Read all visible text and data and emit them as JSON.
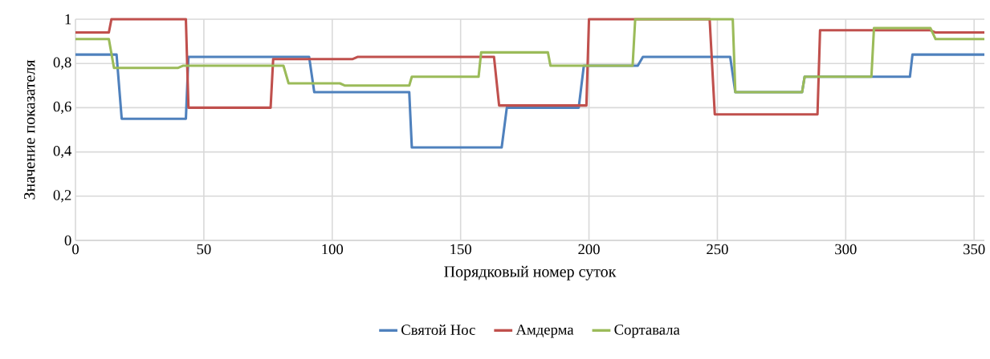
{
  "chart_data": {
    "type": "line",
    "xlabel": "Порядковый номер суток",
    "ylabel": "Значение показателя",
    "xlim": [
      0,
      354
    ],
    "ylim": [
      0,
      1
    ],
    "xticks": [
      0,
      50,
      100,
      150,
      200,
      250,
      300,
      350
    ],
    "yticks": [
      0,
      {
        "value": 0.2,
        "label": "0,2"
      },
      {
        "value": 0.4,
        "label": "0,4"
      },
      {
        "value": 0.6,
        "label": "0,6"
      },
      {
        "value": 0.8,
        "label": "0,8"
      },
      1
    ],
    "grid": true,
    "legend": "bottom",
    "marker": "none",
    "line_style": "solid",
    "series": [
      {
        "name": "Святой Нос",
        "color": "#4f81bd",
        "x": [
          0,
          16,
          18,
          43,
          44,
          91,
          93,
          130,
          131,
          166,
          168,
          196,
          198,
          219,
          221,
          255,
          257,
          283,
          284,
          325,
          326,
          354
        ],
        "values": [
          0.84,
          0.84,
          0.55,
          0.55,
          0.83,
          0.83,
          0.67,
          0.67,
          0.42,
          0.42,
          0.6,
          0.6,
          0.79,
          0.79,
          0.83,
          0.83,
          0.67,
          0.67,
          0.74,
          0.74,
          0.84,
          0.84
        ]
      },
      {
        "name": "Амдерма",
        "color": "#c0504d",
        "x": [
          0,
          13,
          14,
          43,
          44,
          76,
          77,
          108,
          110,
          163,
          165,
          199,
          200,
          247,
          249,
          289,
          290,
          333,
          335,
          354
        ],
        "values": [
          0.94,
          0.94,
          1,
          1,
          0.6,
          0.6,
          0.82,
          0.82,
          0.83,
          0.83,
          0.61,
          0.61,
          1,
          1,
          0.57,
          0.57,
          0.95,
          0.95,
          0.94,
          0.94
        ]
      },
      {
        "name": "Сортавала",
        "color": "#9bbb59",
        "x": [
          0,
          13,
          15,
          40,
          42,
          81,
          83,
          103,
          105,
          130,
          131,
          157,
          158,
          184,
          185,
          217,
          218,
          256,
          257,
          283,
          284,
          310,
          311,
          333,
          335,
          354
        ],
        "values": [
          0.91,
          0.91,
          0.78,
          0.78,
          0.79,
          0.79,
          0.71,
          0.71,
          0.7,
          0.7,
          0.74,
          0.74,
          0.85,
          0.85,
          0.79,
          0.79,
          1,
          1,
          0.67,
          0.67,
          0.74,
          0.74,
          0.96,
          0.96,
          0.91,
          0.91
        ]
      }
    ]
  }
}
